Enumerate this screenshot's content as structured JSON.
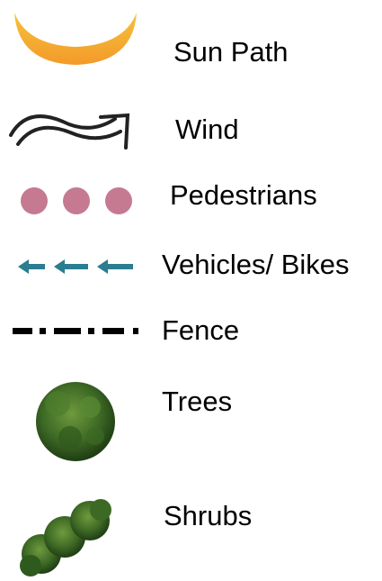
{
  "legend": {
    "items": [
      {
        "label": "Sun Path"
      },
      {
        "label": "Wind"
      },
      {
        "label": "Pedestrians"
      },
      {
        "label": "Vehicles/ Bikes"
      },
      {
        "label": "Fence"
      },
      {
        "label": "Trees"
      },
      {
        "label": "Shrubs"
      }
    ]
  }
}
